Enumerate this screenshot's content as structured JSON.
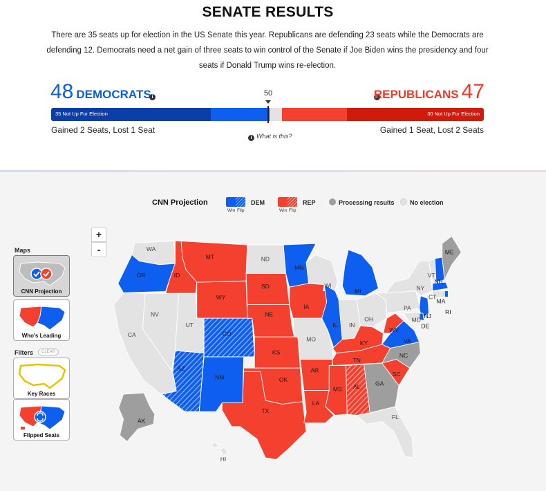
{
  "header": {
    "title": "SENATE RESULTS",
    "intro": "There are 35 seats up for election in the US Senate this year. Republicans are defending 23 seats while the Democrats are defending 12. Democrats need a net gain of three seats to win control of the Senate if Joe Biden wins the presidency and four seats if Donald Trump wins re-election."
  },
  "tally": {
    "dem_count": "48",
    "dem_label": "DEMOCRATS",
    "rep_count": "47",
    "rep_label": "REPUBLICANS",
    "majority": "50",
    "dem_not_up": "35 Not Up For Election",
    "rep_not_up": "30 Not Up For Election",
    "dem_change": "Gained 2 Seats, Lost 1 Seat",
    "rep_change": "Gained 1 Seat, Lost 2 Seats",
    "what_is_this": "What is this?",
    "info_glyph": "i"
  },
  "legend": {
    "title": "CNN Projection",
    "dem": "DEM",
    "rep": "REP",
    "win": "Win",
    "flip": "Flip",
    "processing": "Processing results",
    "no_election": "No election"
  },
  "colors": {
    "dem": "#0e5ff0",
    "dem_dark": "#0b3ea8",
    "rep": "#f4402e",
    "rep_dark": "#cf1a0c",
    "processing": "#9e9e9e",
    "no_election": "#e3e3e3",
    "background": "#f4f4f4"
  },
  "zoom": {
    "in": "+",
    "out": "-"
  },
  "sidebar": {
    "maps_header": "Maps",
    "filters_header": "Filters",
    "clear": "CLEAR",
    "maps": [
      {
        "label": "CNN Projection",
        "active": true
      },
      {
        "label": "Who's Leading",
        "active": false
      }
    ],
    "filters": [
      {
        "label": "Key Races"
      },
      {
        "label": "Flipped Seats"
      }
    ]
  },
  "map": {
    "states": [
      {
        "abbr": "WA",
        "status": "no_election"
      },
      {
        "abbr": "OR",
        "status": "dem_win"
      },
      {
        "abbr": "CA",
        "status": "no_election"
      },
      {
        "abbr": "NV",
        "status": "no_election"
      },
      {
        "abbr": "ID",
        "status": "rep_win"
      },
      {
        "abbr": "MT",
        "status": "rep_win"
      },
      {
        "abbr": "WY",
        "status": "rep_win"
      },
      {
        "abbr": "UT",
        "status": "no_election"
      },
      {
        "abbr": "AZ",
        "status": "dem_flip"
      },
      {
        "abbr": "CO",
        "status": "dem_flip"
      },
      {
        "abbr": "NM",
        "status": "dem_win"
      },
      {
        "abbr": "ND",
        "status": "no_election"
      },
      {
        "abbr": "SD",
        "status": "rep_win"
      },
      {
        "abbr": "NE",
        "status": "rep_win"
      },
      {
        "abbr": "KS",
        "status": "rep_win"
      },
      {
        "abbr": "OK",
        "status": "rep_win"
      },
      {
        "abbr": "TX",
        "status": "rep_win"
      },
      {
        "abbr": "MN",
        "status": "dem_win"
      },
      {
        "abbr": "IA",
        "status": "rep_win"
      },
      {
        "abbr": "MO",
        "status": "no_election"
      },
      {
        "abbr": "AR",
        "status": "rep_win"
      },
      {
        "abbr": "LA",
        "status": "rep_win"
      },
      {
        "abbr": "WI",
        "status": "no_election"
      },
      {
        "abbr": "IL",
        "status": "dem_win"
      },
      {
        "abbr": "MI",
        "status": "dem_win"
      },
      {
        "abbr": "IN",
        "status": "no_election"
      },
      {
        "abbr": "OH",
        "status": "no_election"
      },
      {
        "abbr": "KY",
        "status": "rep_win"
      },
      {
        "abbr": "TN",
        "status": "rep_win"
      },
      {
        "abbr": "MS",
        "status": "rep_win"
      },
      {
        "abbr": "AL",
        "status": "rep_flip"
      },
      {
        "abbr": "GA",
        "status": "processing"
      },
      {
        "abbr": "FL",
        "status": "no_election"
      },
      {
        "abbr": "SC",
        "status": "rep_win"
      },
      {
        "abbr": "NC",
        "status": "processing"
      },
      {
        "abbr": "VA",
        "status": "dem_win"
      },
      {
        "abbr": "WV",
        "status": "rep_win"
      },
      {
        "abbr": "PA",
        "status": "no_election"
      },
      {
        "abbr": "NY",
        "status": "no_election"
      },
      {
        "abbr": "VT",
        "status": "no_election"
      },
      {
        "abbr": "NH",
        "status": "dem_win"
      },
      {
        "abbr": "ME",
        "status": "processing"
      },
      {
        "abbr": "MA",
        "status": "dem_win"
      },
      {
        "abbr": "RI",
        "status": "dem_win"
      },
      {
        "abbr": "CT",
        "status": "no_election"
      },
      {
        "abbr": "NJ",
        "status": "dem_win"
      },
      {
        "abbr": "DE",
        "status": "dem_win"
      },
      {
        "abbr": "MD",
        "status": "no_election"
      },
      {
        "abbr": "AK",
        "status": "processing"
      },
      {
        "abbr": "HI",
        "status": "no_election"
      }
    ]
  }
}
